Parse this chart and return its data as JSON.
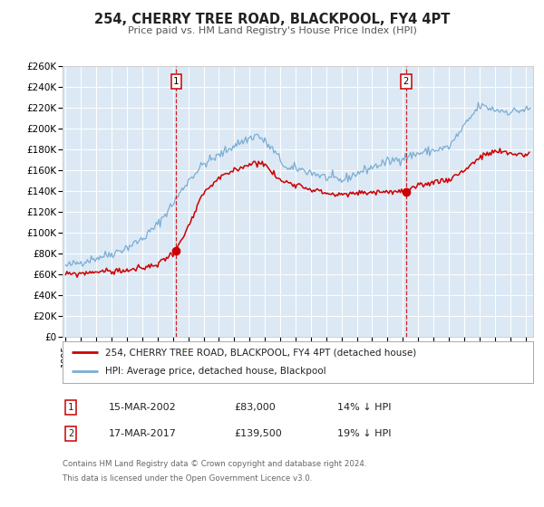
{
  "title": "254, CHERRY TREE ROAD, BLACKPOOL, FY4 4PT",
  "subtitle": "Price paid vs. HM Land Registry's House Price Index (HPI)",
  "background_color": "#ffffff",
  "plot_bg_color": "#dce9f5",
  "grid_color": "#ffffff",
  "red_line_color": "#cc0000",
  "blue_line_color": "#7aadd4",
  "marker1_date": 2002.21,
  "marker1_value": 83000,
  "marker2_date": 2017.21,
  "marker2_value": 139500,
  "vline1_date": 2002.21,
  "vline2_date": 2017.21,
  "ylim": [
    0,
    260000
  ],
  "xlim_start": 1994.8,
  "xlim_end": 2025.5,
  "ytick_labels": [
    "£0",
    "£20K",
    "£40K",
    "£60K",
    "£80K",
    "£100K",
    "£120K",
    "£140K",
    "£160K",
    "£180K",
    "£200K",
    "£220K",
    "£240K",
    "£260K"
  ],
  "ytick_values": [
    0,
    20000,
    40000,
    60000,
    80000,
    100000,
    120000,
    140000,
    160000,
    180000,
    200000,
    220000,
    240000,
    260000
  ],
  "legend_line1": "254, CHERRY TREE ROAD, BLACKPOOL, FY4 4PT (detached house)",
  "legend_line2": "HPI: Average price, detached house, Blackpool",
  "table_row1": [
    "1",
    "15-MAR-2002",
    "£83,000",
    "14% ↓ HPI"
  ],
  "table_row2": [
    "2",
    "17-MAR-2017",
    "£139,500",
    "19% ↓ HPI"
  ],
  "footnote1": "Contains HM Land Registry data © Crown copyright and database right 2024.",
  "footnote2": "This data is licensed under the Open Government Licence v3.0."
}
